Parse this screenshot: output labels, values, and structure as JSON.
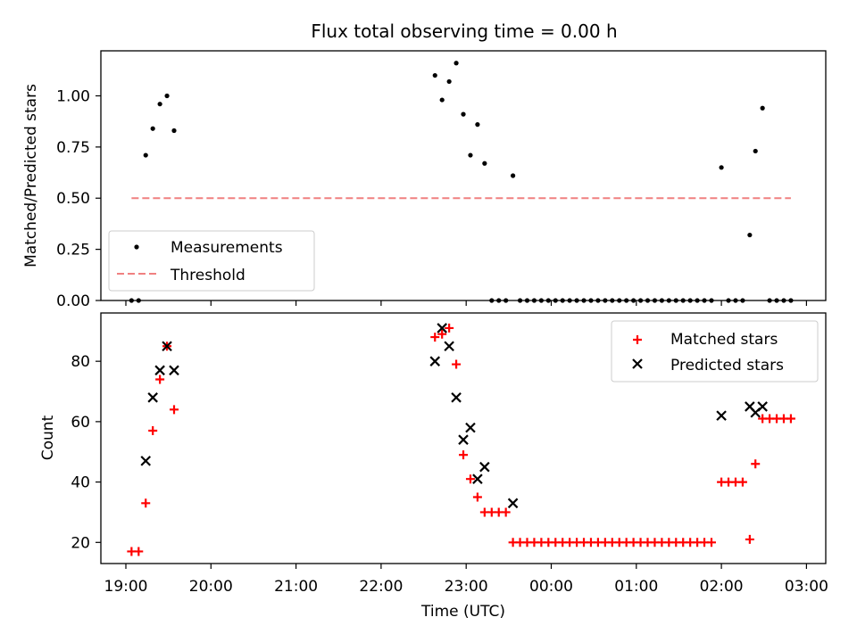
{
  "chart_data": [
    {
      "type": "scatter",
      "title": "Flux total observing time = 0.00 h",
      "xlabel": "",
      "ylabel": "Matched/Predicted stars",
      "ylim": [
        0,
        1.22
      ],
      "yticks": [
        "0.00",
        "0.25",
        "0.50",
        "0.75",
        "1.00"
      ],
      "legend": {
        "position": "lower-left",
        "entries": [
          "Measurements",
          "Threshold"
        ]
      },
      "series": [
        {
          "name": "Measurements",
          "marker": "dot",
          "color": "#000000",
          "points": [
            [
              "19:04",
              0.0
            ],
            [
              "19:09",
              0.0
            ],
            [
              "19:14",
              0.71
            ],
            [
              "19:19",
              0.84
            ],
            [
              "19:24",
              0.96
            ],
            [
              "19:29",
              1.0
            ],
            [
              "19:34",
              0.83
            ],
            [
              "22:38",
              1.1
            ],
            [
              "22:43",
              0.98
            ],
            [
              "22:48",
              1.07
            ],
            [
              "22:53",
              1.16
            ],
            [
              "22:58",
              0.91
            ],
            [
              "23:03",
              0.71
            ],
            [
              "23:08",
              0.86
            ],
            [
              "23:13",
              0.67
            ],
            [
              "23:18",
              0.0
            ],
            [
              "23:23",
              0.0
            ],
            [
              "23:28",
              0.0
            ],
            [
              "23:33",
              0.61
            ],
            [
              "23:38",
              0.0
            ],
            [
              "23:43",
              0.0
            ],
            [
              "23:48",
              0.0
            ],
            [
              "23:53",
              0.0
            ],
            [
              "23:58",
              0.0
            ],
            [
              "00:03",
              0.0
            ],
            [
              "00:08",
              0.0
            ],
            [
              "00:13",
              0.0
            ],
            [
              "00:18",
              0.0
            ],
            [
              "00:23",
              0.0
            ],
            [
              "00:28",
              0.0
            ],
            [
              "00:33",
              0.0
            ],
            [
              "00:38",
              0.0
            ],
            [
              "00:43",
              0.0
            ],
            [
              "00:48",
              0.0
            ],
            [
              "00:53",
              0.0
            ],
            [
              "00:58",
              0.0
            ],
            [
              "01:03",
              0.0
            ],
            [
              "01:08",
              0.0
            ],
            [
              "01:13",
              0.0
            ],
            [
              "01:18",
              0.0
            ],
            [
              "01:23",
              0.0
            ],
            [
              "01:28",
              0.0
            ],
            [
              "01:33",
              0.0
            ],
            [
              "01:38",
              0.0
            ],
            [
              "01:43",
              0.0
            ],
            [
              "01:48",
              0.0
            ],
            [
              "01:53",
              0.0
            ],
            [
              "02:00",
              0.65
            ],
            [
              "02:05",
              0.0
            ],
            [
              "02:10",
              0.0
            ],
            [
              "02:15",
              0.0
            ],
            [
              "02:20",
              0.32
            ],
            [
              "02:24",
              0.73
            ],
            [
              "02:29",
              0.94
            ],
            [
              "02:34",
              0.0
            ],
            [
              "02:39",
              0.0
            ],
            [
              "02:44",
              0.0
            ],
            [
              "02:49",
              0.0
            ]
          ]
        },
        {
          "name": "Threshold",
          "type": "line",
          "style": "dashed",
          "color": "#f08080",
          "points": [
            [
              "19:04",
              0.5
            ],
            [
              "02:49",
              0.5
            ]
          ]
        }
      ]
    },
    {
      "type": "scatter",
      "title": "",
      "xlabel": "Time (UTC)",
      "ylabel": "Count",
      "ylim": [
        13,
        96
      ],
      "yticks": [
        "20",
        "40",
        "60",
        "80"
      ],
      "xticks": [
        "19:00",
        "20:00",
        "21:00",
        "22:00",
        "23:00",
        "00:00",
        "01:00",
        "02:00",
        "03:00"
      ],
      "legend": {
        "position": "top-right",
        "entries": [
          "Matched stars",
          "Predicted stars"
        ]
      },
      "series": [
        {
          "name": "Matched stars",
          "marker": "plus",
          "color": "#ff0000",
          "points": [
            [
              "19:04",
              17
            ],
            [
              "19:09",
              17
            ],
            [
              "19:14",
              33
            ],
            [
              "19:19",
              57
            ],
            [
              "19:24",
              74
            ],
            [
              "19:29",
              85
            ],
            [
              "19:34",
              64
            ],
            [
              "22:38",
              88
            ],
            [
              "22:43",
              89
            ],
            [
              "22:48",
              91
            ],
            [
              "22:53",
              79
            ],
            [
              "22:58",
              49
            ],
            [
              "23:03",
              41
            ],
            [
              "23:08",
              35
            ],
            [
              "23:13",
              30
            ],
            [
              "23:18",
              30
            ],
            [
              "23:23",
              30
            ],
            [
              "23:28",
              30
            ],
            [
              "23:33",
              20
            ],
            [
              "23:38",
              20
            ],
            [
              "23:43",
              20
            ],
            [
              "23:48",
              20
            ],
            [
              "23:53",
              20
            ],
            [
              "23:58",
              20
            ],
            [
              "00:03",
              20
            ],
            [
              "00:08",
              20
            ],
            [
              "00:13",
              20
            ],
            [
              "00:18",
              20
            ],
            [
              "00:23",
              20
            ],
            [
              "00:28",
              20
            ],
            [
              "00:33",
              20
            ],
            [
              "00:38",
              20
            ],
            [
              "00:43",
              20
            ],
            [
              "00:48",
              20
            ],
            [
              "00:53",
              20
            ],
            [
              "00:58",
              20
            ],
            [
              "01:03",
              20
            ],
            [
              "01:08",
              20
            ],
            [
              "01:13",
              20
            ],
            [
              "01:18",
              20
            ],
            [
              "01:23",
              20
            ],
            [
              "01:28",
              20
            ],
            [
              "01:33",
              20
            ],
            [
              "01:38",
              20
            ],
            [
              "01:43",
              20
            ],
            [
              "01:48",
              20
            ],
            [
              "01:53",
              20
            ],
            [
              "02:00",
              40
            ],
            [
              "02:05",
              40
            ],
            [
              "02:10",
              40
            ],
            [
              "02:15",
              40
            ],
            [
              "02:20",
              21
            ],
            [
              "02:24",
              46
            ],
            [
              "02:29",
              61
            ],
            [
              "02:34",
              61
            ],
            [
              "02:39",
              61
            ],
            [
              "02:44",
              61
            ],
            [
              "02:49",
              61
            ]
          ]
        },
        {
          "name": "Predicted stars",
          "marker": "x",
          "color": "#000000",
          "points": [
            [
              "19:14",
              47
            ],
            [
              "19:19",
              68
            ],
            [
              "19:24",
              77
            ],
            [
              "19:29",
              85
            ],
            [
              "19:34",
              77
            ],
            [
              "22:38",
              80
            ],
            [
              "22:43",
              91
            ],
            [
              "22:48",
              85
            ],
            [
              "22:53",
              68
            ],
            [
              "22:58",
              54
            ],
            [
              "23:03",
              58
            ],
            [
              "23:08",
              41
            ],
            [
              "23:13",
              45
            ],
            [
              "23:33",
              33
            ],
            [
              "02:00",
              62
            ],
            [
              "02:20",
              65
            ],
            [
              "02:24",
              63
            ],
            [
              "02:29",
              65
            ]
          ]
        }
      ]
    }
  ]
}
